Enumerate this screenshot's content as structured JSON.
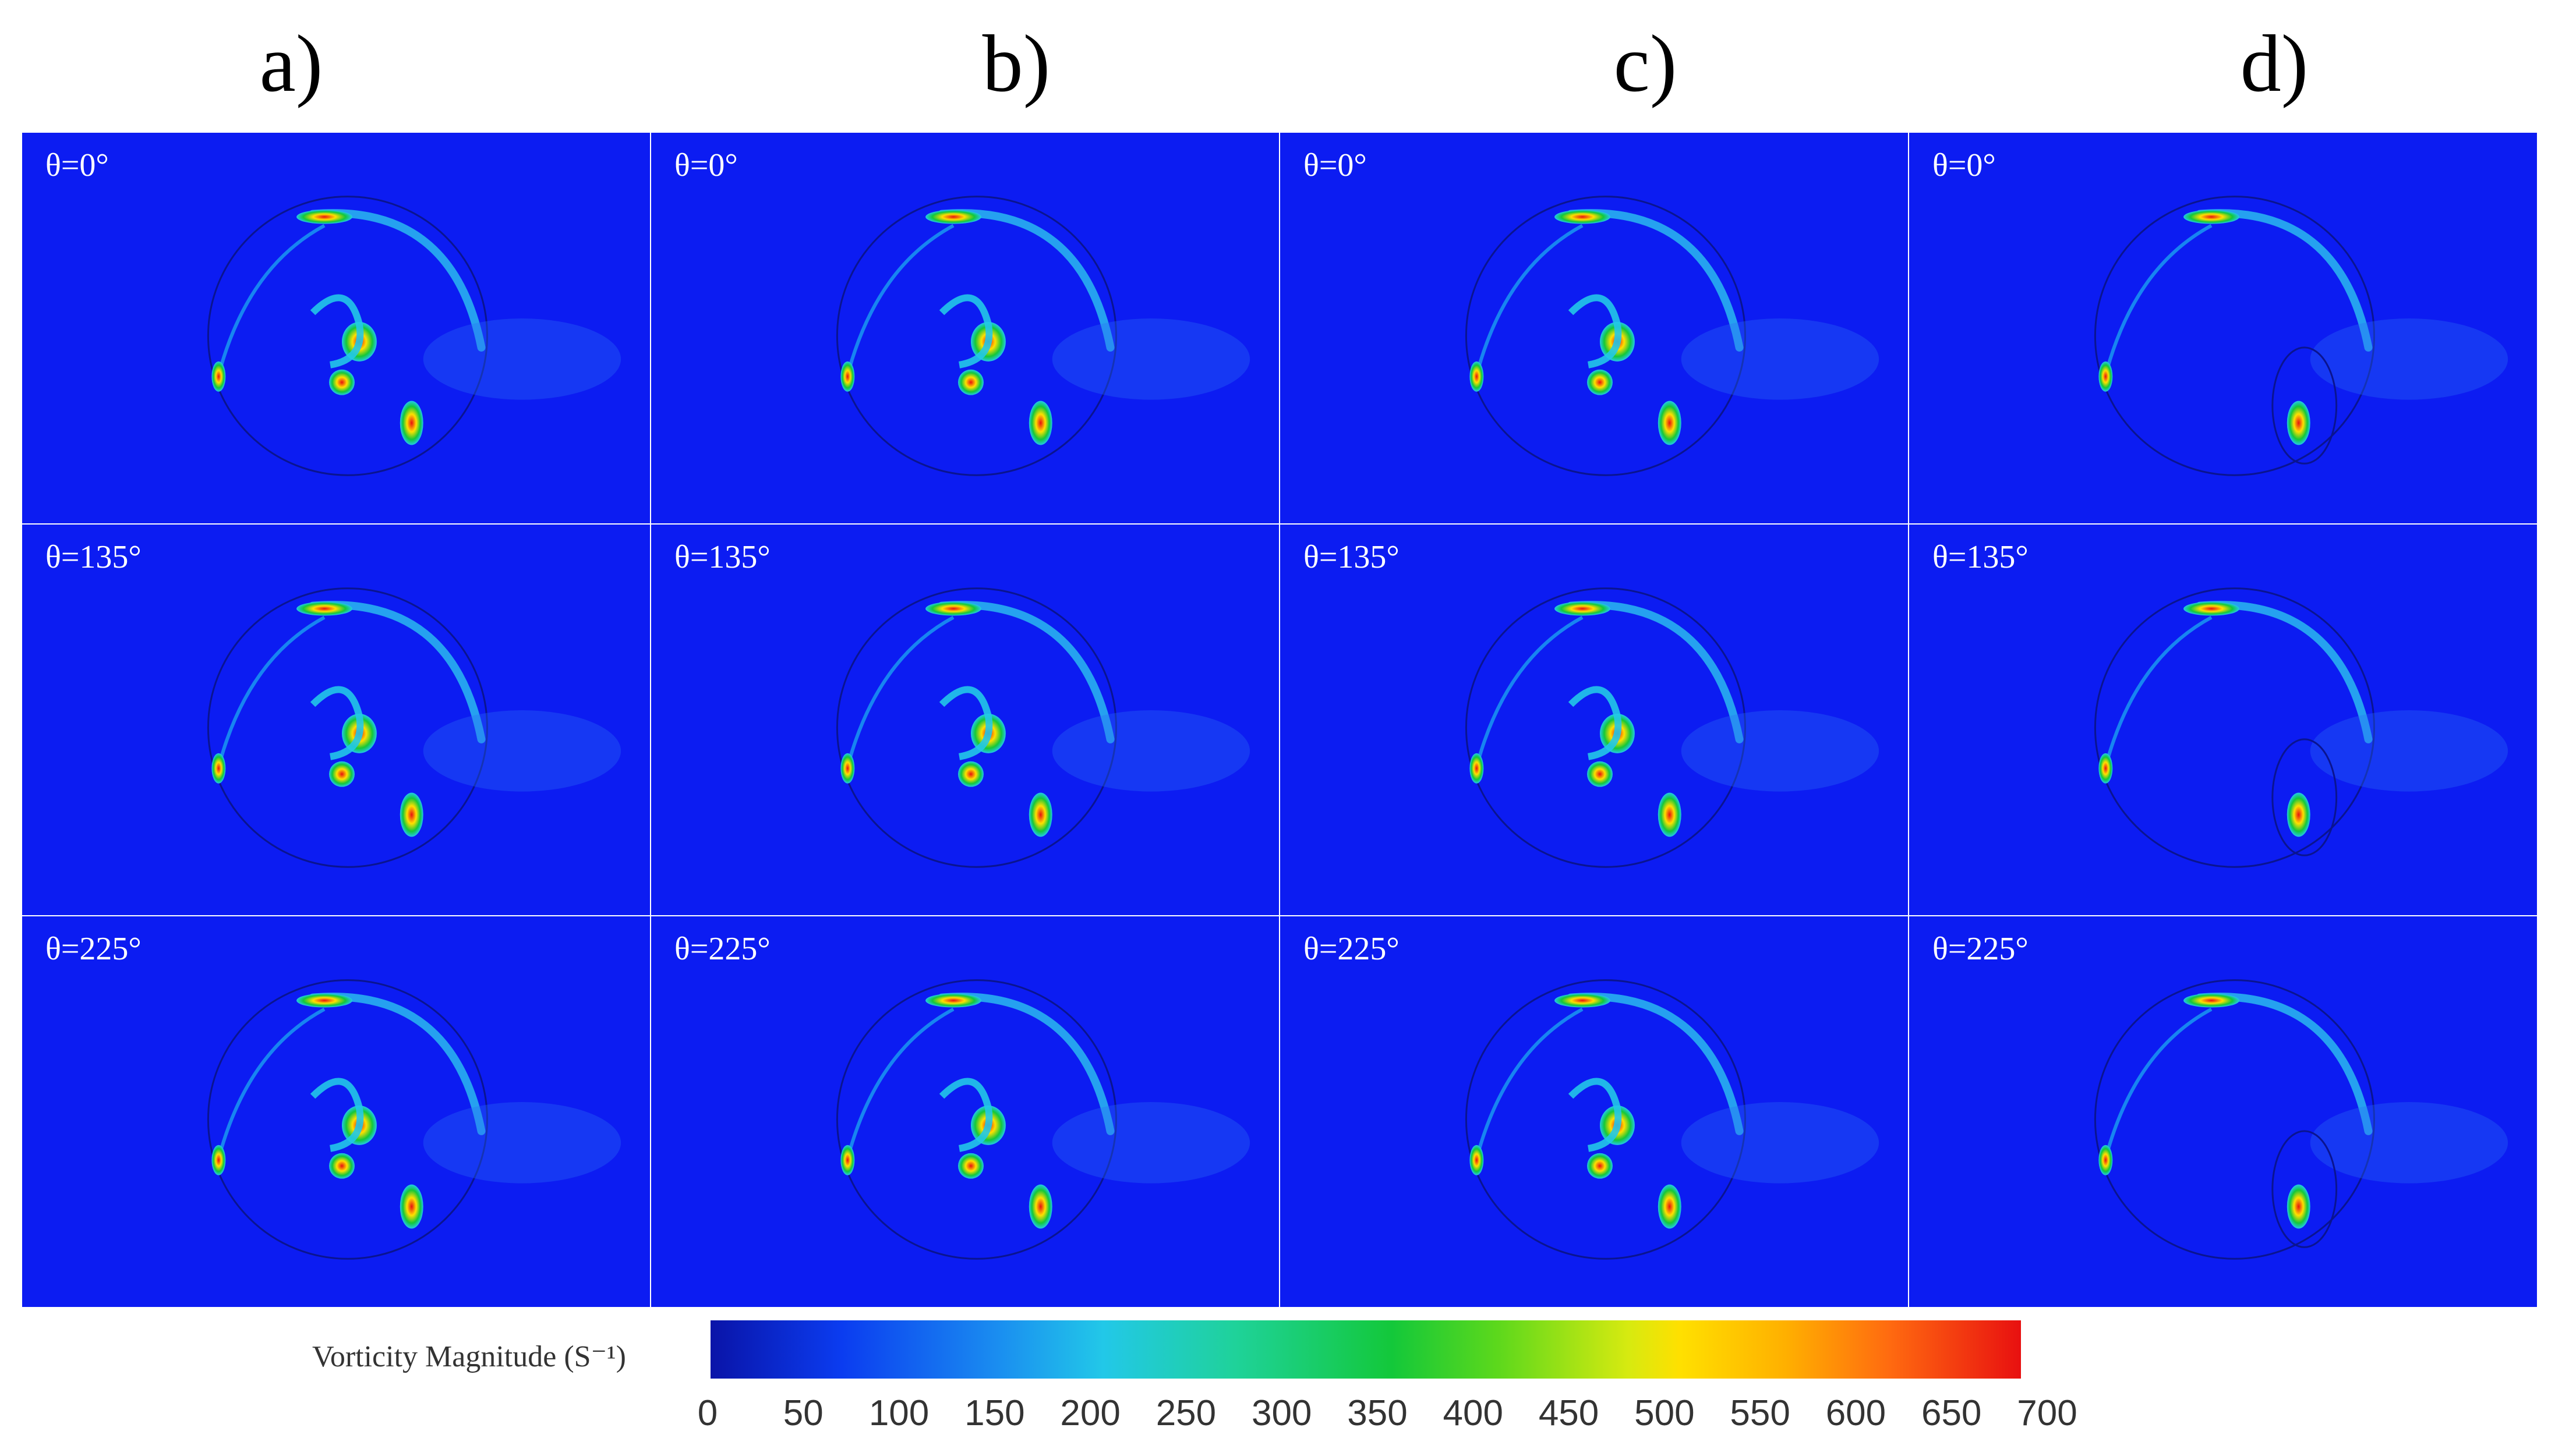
{
  "columns": [
    "a)",
    "b)",
    "c)",
    "d)"
  ],
  "angles": [
    "θ=0°",
    "θ=135°",
    "θ=225°"
  ],
  "colorbar": {
    "label": "Vorticity Magnitude (S⁻¹)",
    "ticks": [
      "0",
      "50",
      "100",
      "150",
      "200",
      "250",
      "300",
      "350",
      "400",
      "450",
      "500",
      "550",
      "600",
      "650",
      "700"
    ]
  },
  "colors": {
    "background": "#0c1cf2",
    "high": "#e81010",
    "mid": "#13c83a",
    "low": "#22c8e8"
  }
}
